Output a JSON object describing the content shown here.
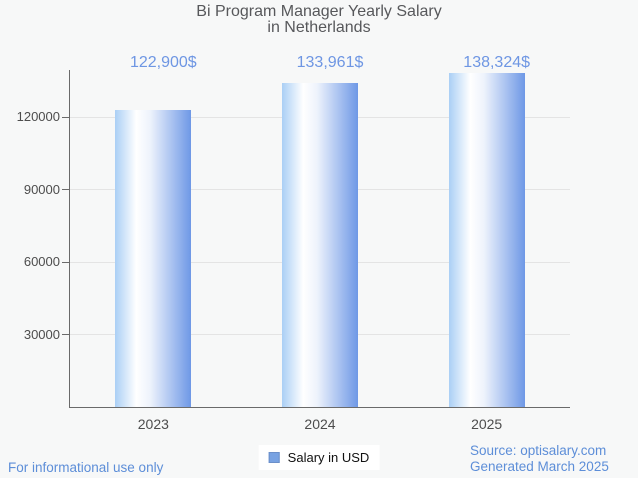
{
  "header": {
    "title_line1": "Bi Program Manager Yearly Salary",
    "title_line2": "in Netherlands"
  },
  "chart_data": {
    "type": "bar",
    "title": "Bi Program Manager Yearly Salary in Netherlands",
    "categories": [
      "2023",
      "2024",
      "2025"
    ],
    "series": [
      {
        "name": "Salary in USD",
        "values": [
          122900,
          133961,
          138324
        ]
      }
    ],
    "value_labels": [
      "122,900$",
      "133,961$",
      "138,324$"
    ],
    "xlabel": "",
    "ylabel": "",
    "ylim": [
      0,
      139450
    ],
    "yticks": [
      30000,
      60000,
      90000,
      120000
    ],
    "ytick_labels": [
      "30000",
      "60000",
      "90000",
      "120000"
    ],
    "grid": true,
    "legend_position": "bottom-center",
    "bar_style": "horizontal gradient blue-white-blue"
  },
  "legend": {
    "label": "Salary in USD"
  },
  "footer": {
    "disclaimer": "For informational use only",
    "source": "Source: optisalary.com",
    "generated": "Generated March 2025"
  },
  "colors": {
    "background": "#f7f8f8",
    "title_text": "#57585b",
    "axis_text": "#4d4d4d",
    "axis_line": "#6a6a6a",
    "gridline": "#e4e4e4",
    "value_label": "#6e96e3",
    "footer_text": "#5d8ed8",
    "legend_text": "#111111",
    "legend_bg": "#ffffff",
    "legend_swatch": "#78a2e2",
    "legend_swatch_border": "#6b8fc9",
    "bar_left": "#aacff5",
    "bar_mid": "#ffffff",
    "bar_right": "#6e98e6"
  }
}
